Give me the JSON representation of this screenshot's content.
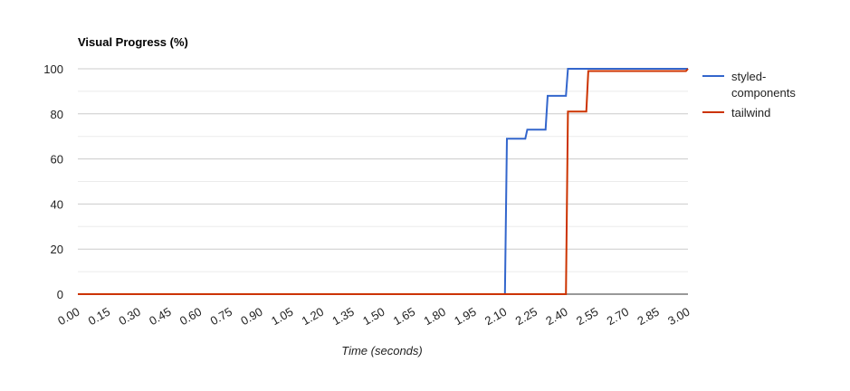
{
  "chart_data": {
    "type": "line",
    "title": "Visual Progress (%)",
    "xlabel": "Time (seconds)",
    "ylabel": "",
    "ylim": [
      0,
      100
    ],
    "xlim": [
      0,
      3.0
    ],
    "y_ticks": [
      0,
      20,
      40,
      60,
      80,
      100
    ],
    "x_ticks": [
      "0.00",
      "0.15",
      "0.30",
      "0.45",
      "0.60",
      "0.75",
      "0.90",
      "1.05",
      "1.20",
      "1.35",
      "1.50",
      "1.65",
      "1.80",
      "1.95",
      "2.10",
      "2.25",
      "2.40",
      "2.55",
      "2.70",
      "2.85",
      "3.00"
    ],
    "grid": true,
    "legend_position": "right",
    "series": [
      {
        "name": "styled-\ncomponents",
        "legend_lines": [
          "styled-",
          "components"
        ],
        "color": "#3366cc",
        "points": [
          [
            0,
            0
          ],
          [
            2.1,
            0
          ],
          [
            2.11,
            69
          ],
          [
            2.2,
            69
          ],
          [
            2.21,
            73
          ],
          [
            2.3,
            73
          ],
          [
            2.31,
            88
          ],
          [
            2.4,
            88
          ],
          [
            2.41,
            100
          ],
          [
            3.0,
            100
          ]
        ]
      },
      {
        "name": "tailwind",
        "legend_lines": [
          "tailwind"
        ],
        "color": "#cc3300",
        "points": [
          [
            0,
            0
          ],
          [
            2.4,
            0
          ],
          [
            2.41,
            81
          ],
          [
            2.5,
            81
          ],
          [
            2.51,
            99
          ],
          [
            2.99,
            99
          ],
          [
            3.0,
            100
          ]
        ]
      }
    ]
  }
}
